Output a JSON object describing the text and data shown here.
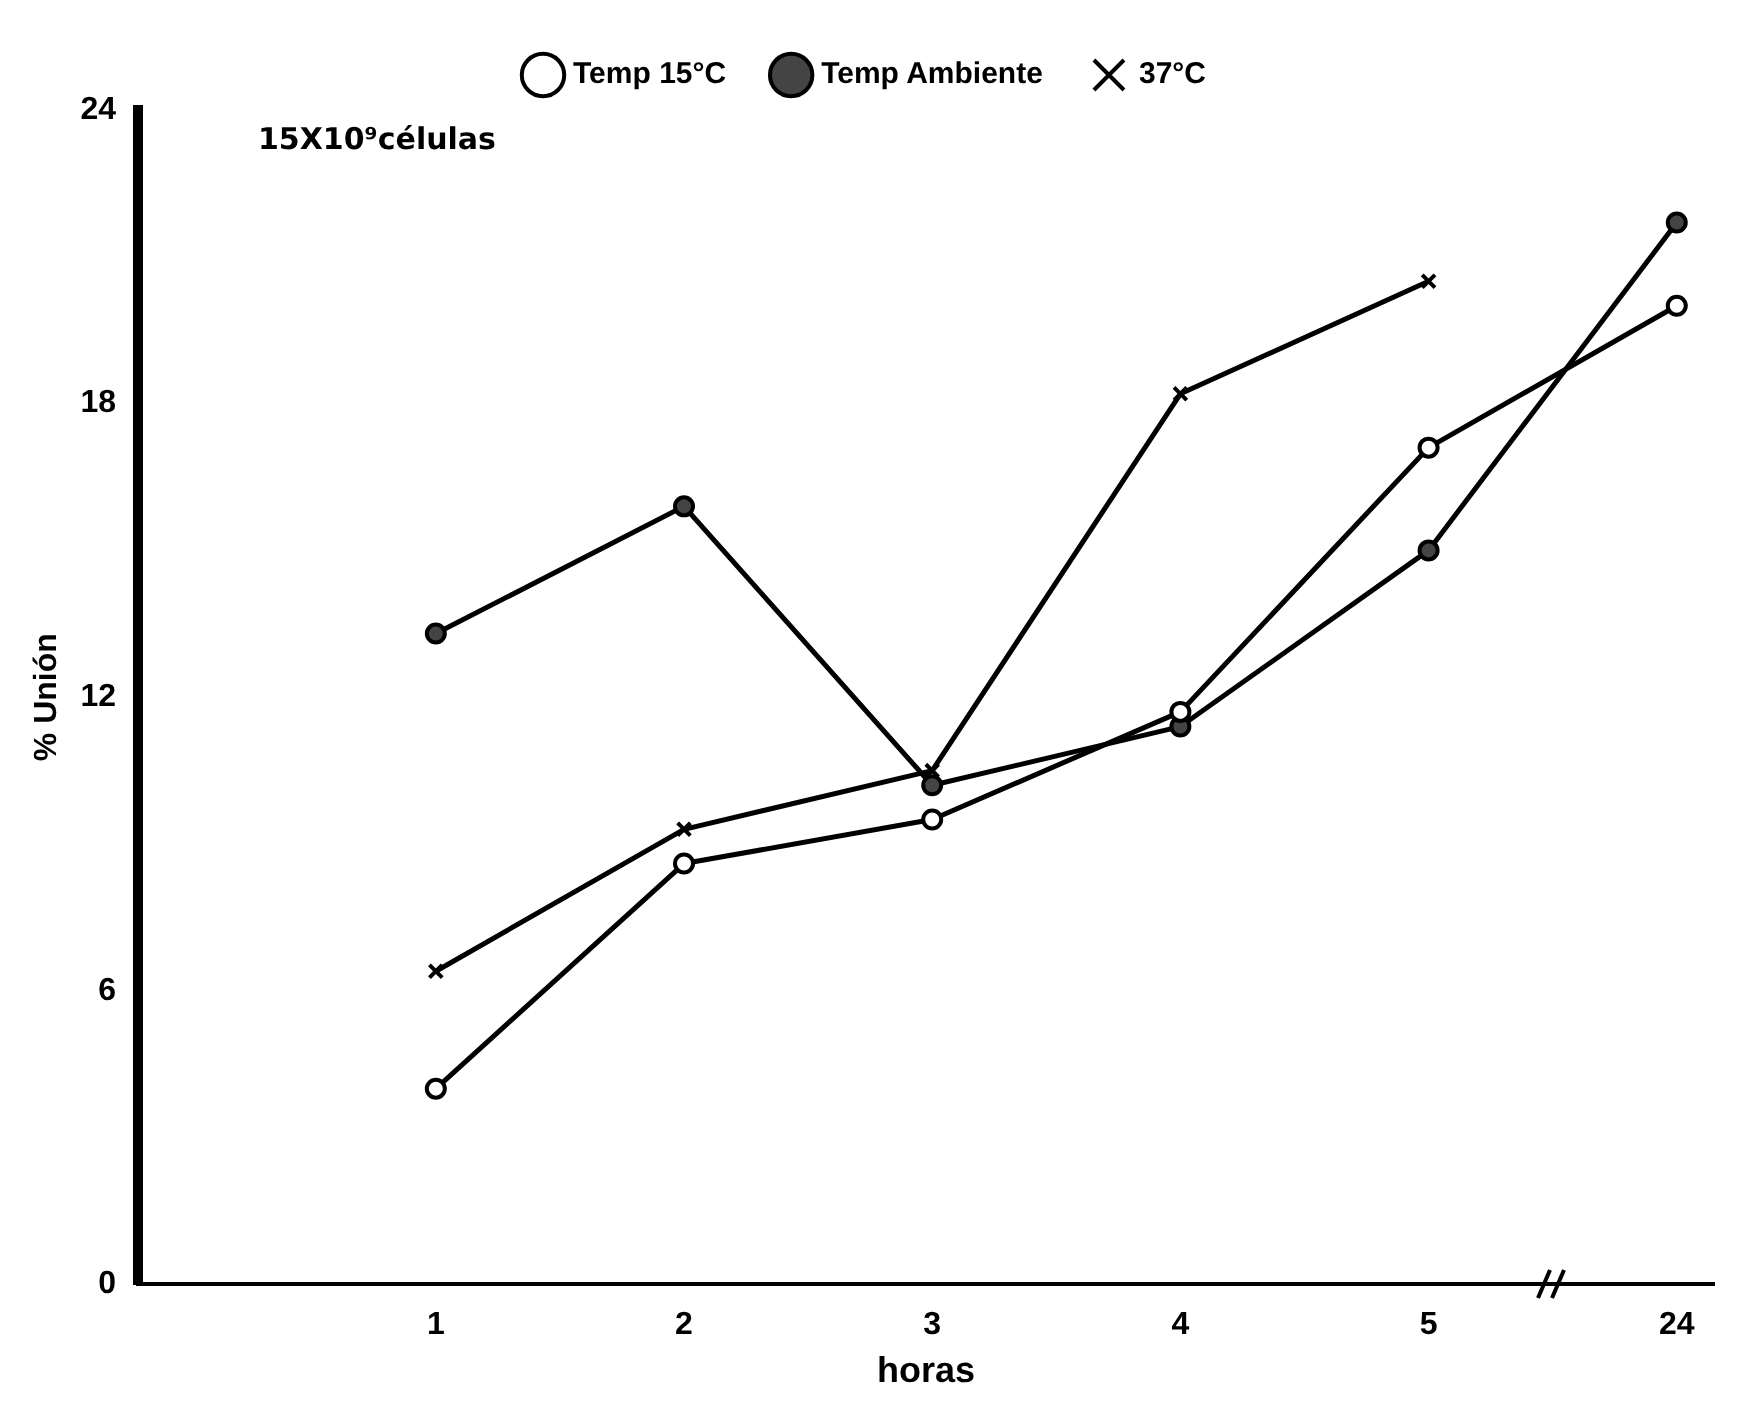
{
  "chart_data": {
    "type": "line",
    "xlabel": "horas",
    "ylabel": "% Unión",
    "categories": [
      "1",
      "2",
      "3",
      "4",
      "5",
      "24"
    ],
    "ylim": [
      0,
      24
    ],
    "yticks": [
      0,
      6,
      12,
      18,
      24
    ],
    "grid": false,
    "legend": "top",
    "line_style": "solid",
    "annotations": [
      "15X10⁹células"
    ],
    "series": [
      {
        "name": "Temp 15°C",
        "color": "#000000",
        "marker": "circle",
        "values": [
          4.0,
          8.6,
          9.5,
          11.7,
          17.1,
          20.0
        ]
      },
      {
        "name": "Temp Ambiente",
        "color": "#000000",
        "marker": "circle",
        "values": [
          13.3,
          15.9,
          10.2,
          11.4,
          15.0,
          21.7
        ]
      },
      {
        "name": "37°C",
        "color": "#000000",
        "marker": "cross",
        "values": [
          6.4,
          9.3,
          10.5,
          18.2,
          20.5,
          null
        ]
      }
    ]
  }
}
